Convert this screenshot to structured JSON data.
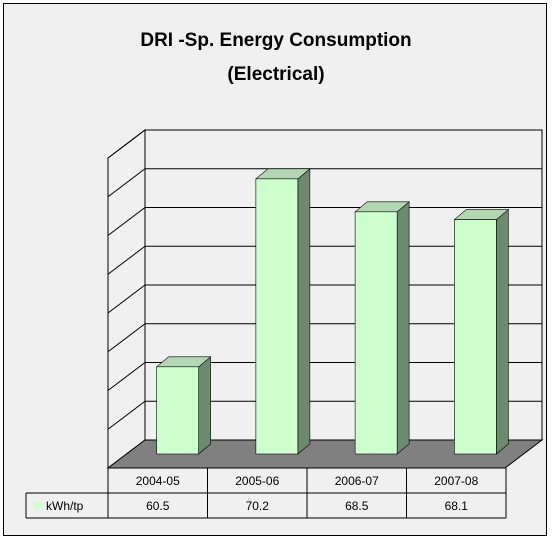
{
  "chart_data": {
    "type": "bar",
    "title_line1": "DRI -Sp. Energy Consumption",
    "title_line2": "(Electrical)",
    "categories": [
      "2004-05",
      "2005-06",
      "2006-07",
      "2007-08"
    ],
    "series": [
      {
        "name": "kWh/tp",
        "values": [
          60.5,
          70.2,
          68.5,
          68.1
        ],
        "labels": [
          "60.5",
          "70.2",
          "68.5",
          "68.1"
        ]
      }
    ],
    "ylim": [
      56,
      72
    ],
    "grid": true,
    "legend": "data-table",
    "colors": {
      "bar_front": "#ccffcc",
      "bar_side": "#6e8a6e",
      "bar_top": "#b3d6b3",
      "floor": "#808080",
      "background": "#f0f0f0"
    }
  }
}
